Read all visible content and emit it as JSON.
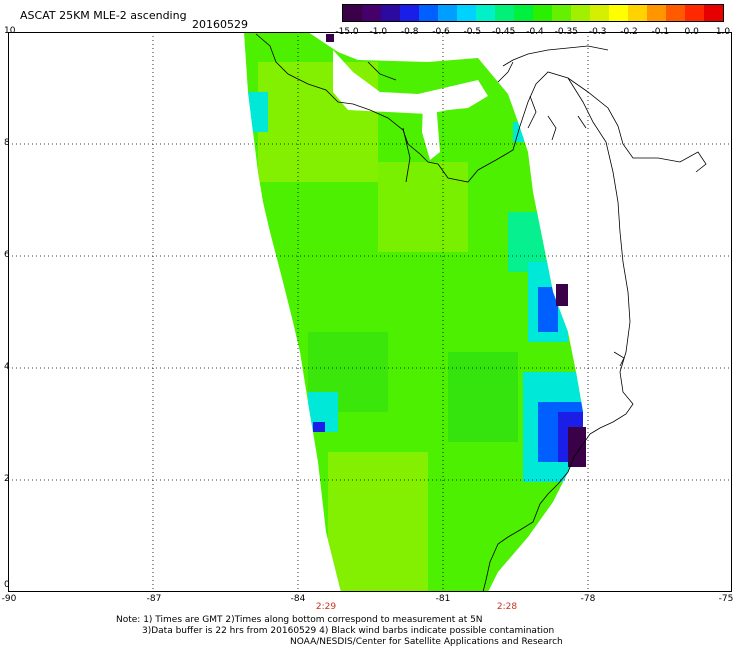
{
  "header": {
    "title": "ASCAT 25KM MLE-2 ascending",
    "date": "20160529"
  },
  "colorbar": {
    "colors": [
      "#3a0048",
      "#46006a",
      "#2a0aa0",
      "#1a1ee6",
      "#0060ff",
      "#009eff",
      "#00d2ff",
      "#00f0c8",
      "#00f078",
      "#00f040",
      "#28f000",
      "#64f000",
      "#a0f000",
      "#d4f000",
      "#ffff00",
      "#ffd200",
      "#ff9600",
      "#ff5a00",
      "#ff2800",
      "#e60000"
    ],
    "ticks": [
      "-15.0",
      "-1.0",
      "-0.8",
      "-0.6",
      "-0.5",
      "-0.45",
      "-0.4",
      "-0.35",
      "-0.3",
      "-0.2",
      "-0.1",
      "0.0",
      "1.0"
    ]
  },
  "axes": {
    "lon_ticks": [
      "-90",
      "-87",
      "-84",
      "-81",
      "-78",
      "-75"
    ],
    "lat_ticks": [
      "0",
      "2",
      "4",
      "6",
      "8",
      "10"
    ],
    "times": [
      "2:29",
      "2:28"
    ]
  },
  "notes": [
    "Note: 1) Times are GMT 2)Times along bottom correspond to measurement at 5N",
    "3)Data buffer is 22 hrs from 20160529 4) Black wind barbs indicate possible contamination",
    "NOAA/NESDIS/Center for Satellite Applications and Research"
  ],
  "palette": {
    "green_main": "#4cf000",
    "green_light": "#8cf000",
    "green_dark": "#20e010",
    "cyan": "#00e8d8",
    "blue": "#1a1ee6",
    "purple": "#3a0048"
  }
}
